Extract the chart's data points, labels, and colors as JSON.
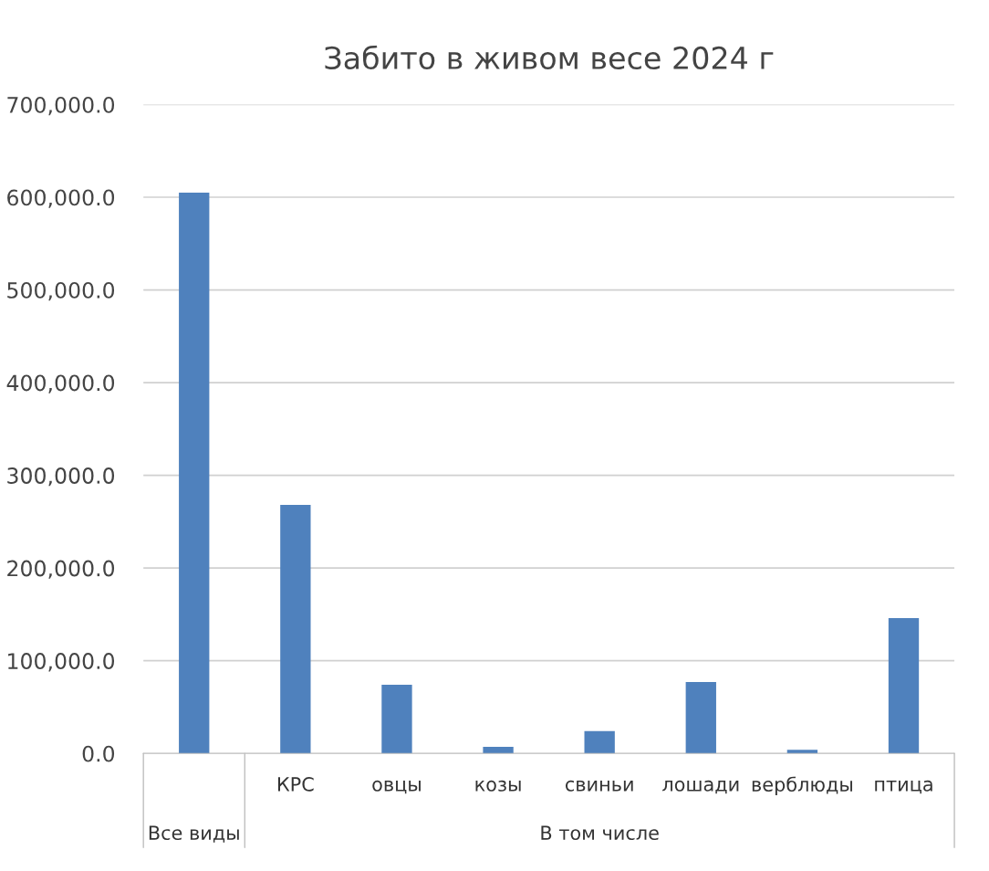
{
  "chart_data": {
    "type": "bar",
    "title": "Забито в живом весе 2024 г",
    "categories": [
      null,
      "КРС",
      "овцы",
      "козы",
      "свиньи",
      "лошади",
      "верблюды",
      "птица"
    ],
    "values": [
      605000,
      268000,
      74000,
      7000,
      24000,
      77000,
      4000,
      146000
    ],
    "color": "#4f81bd",
    "ylim": [
      0,
      700000
    ],
    "yticks": [
      {
        "value": 0,
        "label": "0.0"
      },
      {
        "value": 100000,
        "label": "100,000.0"
      },
      {
        "value": 200000,
        "label": "200,000.0"
      },
      {
        "value": 300000,
        "label": "300,000.0"
      },
      {
        "value": 400000,
        "label": "400,000.0"
      },
      {
        "value": 500000,
        "label": "500,000.0"
      },
      {
        "value": 600000,
        "label": "600,000.0"
      },
      {
        "value": 700000,
        "label": "700,000.0"
      }
    ],
    "grid": "y",
    "annotations": [
      "Все виды",
      "В том числе"
    ]
  }
}
